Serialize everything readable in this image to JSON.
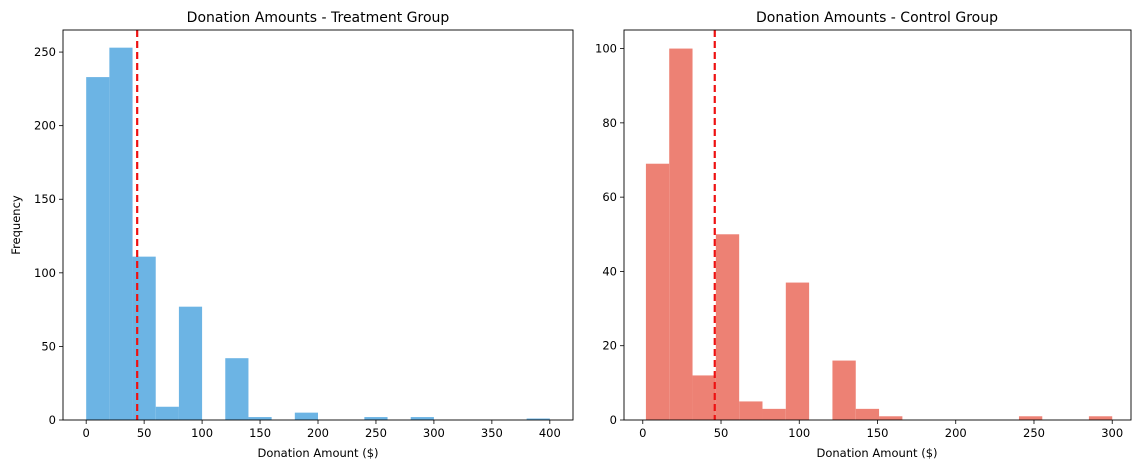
{
  "chart_data": [
    {
      "type": "bar",
      "subtype": "histogram",
      "title": "Donation Amounts - Treatment Group",
      "xlabel": "Donation Amount ($)",
      "ylabel": "Frequency",
      "xlim": [
        -20,
        420
      ],
      "ylim": [
        0,
        265
      ],
      "x_ticks": [
        0,
        50,
        100,
        150,
        200,
        250,
        300,
        350,
        400
      ],
      "y_ticks": [
        0,
        50,
        100,
        150,
        200,
        250
      ],
      "bin_edges": [
        0,
        20,
        40,
        60,
        80,
        100,
        120,
        140,
        160,
        180,
        200,
        220,
        240,
        260,
        280,
        300,
        320,
        340,
        360,
        380,
        400
      ],
      "values": [
        233,
        253,
        111,
        9,
        77,
        0,
        42,
        2,
        0,
        5,
        0,
        0,
        2,
        0,
        2,
        0,
        0,
        0,
        0,
        1
      ],
      "mean_line": 44,
      "bar_color": "#6cb4e4",
      "mean_line_color": "#ee1111",
      "grid": false
    },
    {
      "type": "bar",
      "subtype": "histogram",
      "title": "Donation Amounts - Control Group",
      "xlabel": "Donation Amount ($)",
      "ylabel": "",
      "xlim": [
        -12,
        312
      ],
      "ylim": [
        0,
        105
      ],
      "x_ticks": [
        0,
        50,
        100,
        150,
        200,
        250,
        300
      ],
      "y_ticks": [
        0,
        20,
        40,
        60,
        80,
        100
      ],
      "bin_edges": [
        2,
        16.9,
        31.8,
        46.7,
        61.6,
        76.5,
        91.4,
        106.3,
        121.2,
        136.1,
        151,
        165.9,
        180.8,
        195.7,
        210.6,
        225.5,
        240.4,
        255.3,
        270.2,
        285.1,
        300
      ],
      "values": [
        69,
        100,
        12,
        50,
        5,
        3,
        37,
        0,
        16,
        3,
        1,
        0,
        0,
        0,
        0,
        0,
        1,
        0,
        0,
        1
      ],
      "mean_line": 46,
      "bar_color": "#ed8174",
      "mean_line_color": "#ee1111",
      "grid": false
    }
  ]
}
